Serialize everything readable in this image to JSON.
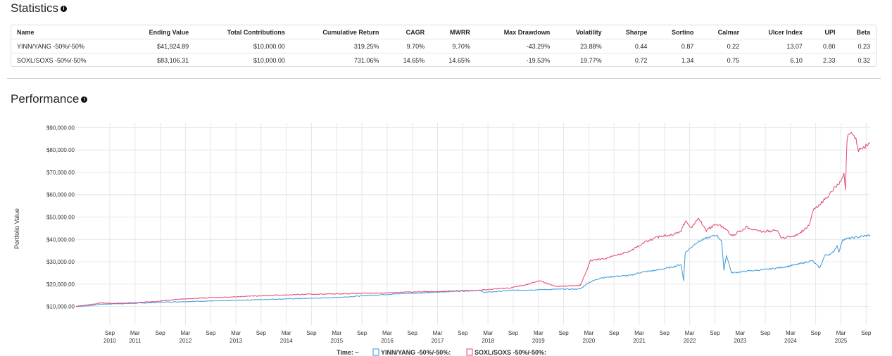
{
  "statistics": {
    "title": "Statistics",
    "columns": [
      "Name",
      "Ending Value",
      "Total Contributions",
      "Cumulative Return",
      "CAGR",
      "MWRR",
      "Max Drawdown",
      "Volatility",
      "Sharpe",
      "Sortino",
      "Calmar",
      "Ulcer Index",
      "UPI",
      "Beta"
    ],
    "rows": [
      [
        "YINN/YANG -50%/-50%",
        "$41,924.89",
        "$10,000.00",
        "319.25%",
        "9.70%",
        "9.70%",
        "-43.29%",
        "23.88%",
        "0.44",
        "0.87",
        "0.22",
        "13.07",
        "0.80",
        "0.23"
      ],
      [
        "SOXL/SOXS -50%/-50%",
        "$83,106.31",
        "$10,000.00",
        "731.06%",
        "14.65%",
        "14.65%",
        "-19.53%",
        "19.77%",
        "0.72",
        "1.34",
        "0.75",
        "6.10",
        "2.33",
        "0.32"
      ]
    ]
  },
  "performance": {
    "title": "Performance"
  },
  "icons": {
    "info": "info-circle-icon"
  },
  "chart_data": {
    "type": "line",
    "ylabel": "Portfolio Value",
    "ylim": [
      8000,
      92000
    ],
    "xlim": [
      2010.0,
      2025.75
    ],
    "y_ticks": [
      {
        "v": 10000,
        "label": "$10,000.00"
      },
      {
        "v": 20000,
        "label": "$20,000.00"
      },
      {
        "v": 30000,
        "label": "$30,000.00"
      },
      {
        "v": 40000,
        "label": "$40,000.00"
      },
      {
        "v": 50000,
        "label": "$50,000.00"
      },
      {
        "v": 60000,
        "label": "$60,000.00"
      },
      {
        "v": 70000,
        "label": "$70,000.00"
      },
      {
        "v": 80000,
        "label": "$80,000.00"
      },
      {
        "v": 90000,
        "label": "$90,000.00"
      }
    ],
    "x_ticks": [
      {
        "t": 2010.67,
        "month": "Sep",
        "year": "2010"
      },
      {
        "t": 2011.17,
        "month": "Mar",
        "year": "2011"
      },
      {
        "t": 2011.67,
        "month": "Sep",
        "year": ""
      },
      {
        "t": 2012.17,
        "month": "Mar",
        "year": "2012"
      },
      {
        "t": 2012.67,
        "month": "Sep",
        "year": ""
      },
      {
        "t": 2013.17,
        "month": "Mar",
        "year": "2013"
      },
      {
        "t": 2013.67,
        "month": "Sep",
        "year": ""
      },
      {
        "t": 2014.17,
        "month": "Mar",
        "year": "2014"
      },
      {
        "t": 2014.67,
        "month": "Sep",
        "year": ""
      },
      {
        "t": 2015.17,
        "month": "Mar",
        "year": "2015"
      },
      {
        "t": 2015.67,
        "month": "Sep",
        "year": ""
      },
      {
        "t": 2016.17,
        "month": "Mar",
        "year": "2016"
      },
      {
        "t": 2016.67,
        "month": "Sep",
        "year": ""
      },
      {
        "t": 2017.17,
        "month": "Mar",
        "year": "2017"
      },
      {
        "t": 2017.67,
        "month": "Sep",
        "year": ""
      },
      {
        "t": 2018.17,
        "month": "Mar",
        "year": "2018"
      },
      {
        "t": 2018.67,
        "month": "Sep",
        "year": ""
      },
      {
        "t": 2019.17,
        "month": "Mar",
        "year": "2019"
      },
      {
        "t": 2019.67,
        "month": "Sep",
        "year": ""
      },
      {
        "t": 2020.17,
        "month": "Mar",
        "year": "2020"
      },
      {
        "t": 2020.67,
        "month": "Sep",
        "year": ""
      },
      {
        "t": 2021.17,
        "month": "Mar",
        "year": "2021"
      },
      {
        "t": 2021.67,
        "month": "Sep",
        "year": ""
      },
      {
        "t": 2022.17,
        "month": "Mar",
        "year": "2022"
      },
      {
        "t": 2022.67,
        "month": "Sep",
        "year": ""
      },
      {
        "t": 2023.17,
        "month": "Mar",
        "year": "2023"
      },
      {
        "t": 2023.67,
        "month": "Sep",
        "year": ""
      },
      {
        "t": 2024.17,
        "month": "Mar",
        "year": "2024"
      },
      {
        "t": 2024.67,
        "month": "Sep",
        "year": ""
      },
      {
        "t": 2025.17,
        "month": "Mar",
        "year": "2025"
      },
      {
        "t": 2025.67,
        "month": "Sep",
        "year": ""
      }
    ],
    "legend": {
      "time_label": "Time: –",
      "placement": "bottom-center"
    },
    "series": [
      {
        "name": "YINN/YANG -50%/-50%:",
        "color": "#3a9ad9",
        "points": [
          [
            2010.0,
            10000
          ],
          [
            2010.25,
            10300
          ],
          [
            2010.5,
            11000
          ],
          [
            2010.75,
            11200
          ],
          [
            2011.0,
            11300
          ],
          [
            2011.25,
            11500
          ],
          [
            2011.5,
            11700
          ],
          [
            2011.75,
            12000
          ],
          [
            2012.0,
            12100
          ],
          [
            2012.5,
            12400
          ],
          [
            2013.0,
            12600
          ],
          [
            2013.5,
            13000
          ],
          [
            2014.0,
            13300
          ],
          [
            2014.5,
            13600
          ],
          [
            2015.0,
            13900
          ],
          [
            2015.3,
            14200
          ],
          [
            2015.5,
            14500
          ],
          [
            2015.7,
            14800
          ],
          [
            2016.0,
            15200
          ],
          [
            2016.5,
            15800
          ],
          [
            2017.0,
            16200
          ],
          [
            2017.5,
            16800
          ],
          [
            2018.0,
            17200
          ],
          [
            2018.1,
            16300
          ],
          [
            2018.3,
            16600
          ],
          [
            2018.6,
            17200
          ],
          [
            2019.0,
            17400
          ],
          [
            2019.5,
            17700
          ],
          [
            2020.0,
            17800
          ],
          [
            2020.15,
            20500
          ],
          [
            2020.4,
            22800
          ],
          [
            2020.7,
            23500
          ],
          [
            2021.0,
            23900
          ],
          [
            2021.2,
            25300
          ],
          [
            2021.5,
            26200
          ],
          [
            2021.8,
            27500
          ],
          [
            2022.0,
            28800
          ],
          [
            2022.05,
            21500
          ],
          [
            2022.08,
            34000
          ],
          [
            2022.3,
            38500
          ],
          [
            2022.5,
            40500
          ],
          [
            2022.7,
            42000
          ],
          [
            2022.8,
            39500
          ],
          [
            2022.85,
            26500
          ],
          [
            2022.9,
            33000
          ],
          [
            2023.0,
            25000
          ],
          [
            2023.3,
            25800
          ],
          [
            2023.7,
            26600
          ],
          [
            2024.0,
            27500
          ],
          [
            2024.3,
            28800
          ],
          [
            2024.6,
            30500
          ],
          [
            2024.75,
            27200
          ],
          [
            2024.85,
            32800
          ],
          [
            2025.0,
            33800
          ],
          [
            2025.1,
            37500
          ],
          [
            2025.13,
            34000
          ],
          [
            2025.2,
            40000
          ],
          [
            2025.5,
            41000
          ],
          [
            2025.75,
            41924
          ]
        ]
      },
      {
        "name": "SOXL/SOXS -50%/-50%:",
        "color": "#e3466e",
        "points": [
          [
            2010.0,
            10000
          ],
          [
            2010.25,
            10800
          ],
          [
            2010.5,
            11600
          ],
          [
            2010.75,
            11400
          ],
          [
            2011.0,
            11500
          ],
          [
            2011.3,
            11900
          ],
          [
            2011.6,
            12300
          ],
          [
            2012.0,
            13200
          ],
          [
            2012.5,
            13800
          ],
          [
            2013.0,
            14200
          ],
          [
            2013.5,
            14700
          ],
          [
            2014.0,
            15100
          ],
          [
            2014.5,
            15400
          ],
          [
            2015.0,
            15600
          ],
          [
            2015.5,
            15800
          ],
          [
            2016.0,
            16000
          ],
          [
            2016.5,
            16400
          ],
          [
            2017.0,
            16700
          ],
          [
            2017.5,
            16900
          ],
          [
            2018.0,
            17300
          ],
          [
            2018.3,
            17800
          ],
          [
            2018.6,
            18300
          ],
          [
            2018.9,
            19600
          ],
          [
            2019.2,
            21500
          ],
          [
            2019.5,
            19000
          ],
          [
            2019.8,
            19200
          ],
          [
            2020.0,
            19500
          ],
          [
            2020.1,
            24500
          ],
          [
            2020.2,
            30500
          ],
          [
            2020.5,
            31500
          ],
          [
            2020.8,
            33500
          ],
          [
            2021.0,
            35000
          ],
          [
            2021.3,
            39000
          ],
          [
            2021.6,
            41500
          ],
          [
            2021.9,
            42500
          ],
          [
            2022.0,
            44000
          ],
          [
            2022.1,
            48500
          ],
          [
            2022.2,
            45000
          ],
          [
            2022.35,
            49500
          ],
          [
            2022.5,
            44000
          ],
          [
            2022.7,
            47000
          ],
          [
            2022.9,
            44500
          ],
          [
            2023.0,
            41500
          ],
          [
            2023.3,
            45500
          ],
          [
            2023.6,
            43500
          ],
          [
            2023.9,
            44000
          ],
          [
            2024.0,
            40500
          ],
          [
            2024.3,
            42000
          ],
          [
            2024.55,
            46500
          ],
          [
            2024.62,
            53000
          ],
          [
            2024.9,
            59000
          ],
          [
            2025.0,
            62000
          ],
          [
            2025.1,
            64000
          ],
          [
            2025.2,
            67000
          ],
          [
            2025.23,
            69500
          ],
          [
            2025.26,
            62000
          ],
          [
            2025.29,
            84500
          ],
          [
            2025.33,
            87500
          ],
          [
            2025.45,
            86000
          ],
          [
            2025.52,
            80000
          ],
          [
            2025.65,
            81500
          ],
          [
            2025.75,
            83106
          ]
        ]
      }
    ]
  }
}
